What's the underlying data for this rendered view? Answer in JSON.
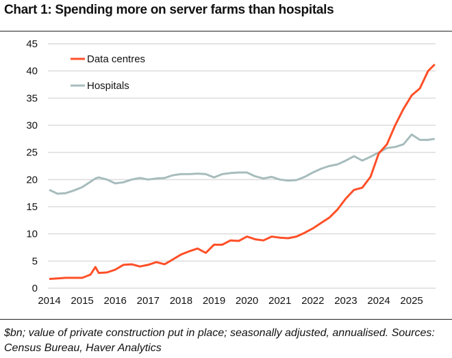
{
  "chart_data": {
    "type": "line",
    "title": "Chart 1: Spending more on server farms than hospitals",
    "note": "$bn; value of private construction put in place; seasonally adjusted, annualised. Sources: Census Bureau, Haver Analytics",
    "xlabel": "",
    "ylabel": "",
    "ylim": [
      0,
      45
    ],
    "yticks": [
      "0",
      "5",
      "10",
      "15",
      "20",
      "25",
      "30",
      "35",
      "40",
      "45"
    ],
    "xticks": [
      "2014",
      "2015",
      "2016",
      "2017",
      "2018",
      "2019",
      "2020",
      "2021",
      "2022",
      "2023",
      "2024",
      "2025"
    ],
    "grid": "horizontal",
    "legend_position": "top-left",
    "x": [
      2014.0,
      2014.25,
      2014.5,
      2014.75,
      2015.0,
      2015.25,
      2015.4,
      2015.5,
      2015.75,
      2016.0,
      2016.25,
      2016.5,
      2016.75,
      2017.0,
      2017.25,
      2017.5,
      2017.75,
      2018.0,
      2018.25,
      2018.5,
      2018.75,
      2019.0,
      2019.25,
      2019.5,
      2019.75,
      2020.0,
      2020.25,
      2020.5,
      2020.75,
      2021.0,
      2021.25,
      2021.5,
      2021.75,
      2022.0,
      2022.25,
      2022.5,
      2022.75,
      2023.0,
      2023.25,
      2023.5,
      2023.75,
      2024.0,
      2024.25,
      2024.5,
      2024.75,
      2025.0,
      2025.25,
      2025.5,
      2025.7
    ],
    "series": [
      {
        "name": "Data centres",
        "color": "#ff4f27",
        "values": [
          1.7,
          1.8,
          1.9,
          1.9,
          1.9,
          2.5,
          3.9,
          2.8,
          2.9,
          3.4,
          4.3,
          4.4,
          4.0,
          4.3,
          4.8,
          4.4,
          5.3,
          6.2,
          6.8,
          7.3,
          6.5,
          8.0,
          8.0,
          8.8,
          8.7,
          9.5,
          9.0,
          8.8,
          9.5,
          9.3,
          9.2,
          9.5,
          10.2,
          11.0,
          12.0,
          13.0,
          14.5,
          16.5,
          18.1,
          18.5,
          20.5,
          24.8,
          26.5,
          30.0,
          33.0,
          35.5,
          36.8,
          40.0,
          41.2
        ]
      },
      {
        "name": "Hospitals",
        "color": "#a7bcbc",
        "values": [
          18.1,
          17.4,
          17.5,
          18.0,
          18.6,
          19.6,
          20.2,
          20.4,
          20.0,
          19.3,
          19.5,
          20.0,
          20.3,
          20.0,
          20.2,
          20.3,
          20.8,
          21.0,
          21.0,
          21.1,
          21.0,
          20.4,
          21.0,
          21.2,
          21.3,
          21.3,
          20.6,
          20.2,
          20.5,
          20.0,
          19.8,
          19.9,
          20.5,
          21.3,
          22.0,
          22.5,
          22.8,
          23.5,
          24.3,
          23.5,
          24.2,
          25.0,
          25.8,
          26.0,
          26.5,
          28.3,
          27.3,
          27.3,
          27.5
        ]
      }
    ]
  }
}
